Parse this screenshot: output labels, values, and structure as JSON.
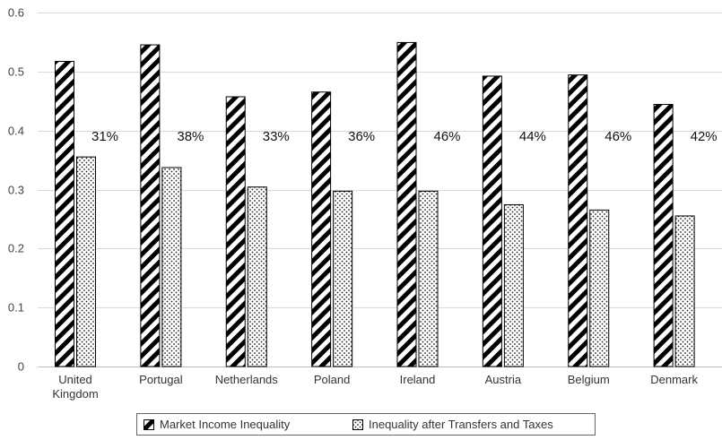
{
  "chart_data": {
    "type": "bar",
    "categories": [
      "United Kingdom",
      "Portugal",
      "Netherlands",
      "Poland",
      "Ireland",
      "Austria",
      "Belgium",
      "Denmark"
    ],
    "series": [
      {
        "name": "Market Income Inequality",
        "values": [
          0.518,
          0.546,
          0.458,
          0.466,
          0.55,
          0.493,
          0.495,
          0.445
        ],
        "pattern": "diagonal-hatch"
      },
      {
        "name": "Inequality after Transfers and Taxes",
        "values": [
          0.356,
          0.338,
          0.305,
          0.298,
          0.298,
          0.275,
          0.266,
          0.256
        ],
        "pattern": "dots"
      }
    ],
    "annotations": [
      "31%",
      "38%",
      "33%",
      "36%",
      "46%",
      "44%",
      "46%",
      "42%"
    ],
    "ylim": [
      0,
      0.6
    ],
    "yticks": [
      "0",
      "0.1",
      "0.2",
      "0.3",
      "0.4",
      "0.5",
      "0.6"
    ],
    "grid": true,
    "legend_position": "bottom",
    "colors": {
      "bar_fill": "#000000",
      "bar_background": "#ffffff",
      "grid": "#d9d9d9",
      "axis": "#bfbfbf"
    }
  }
}
